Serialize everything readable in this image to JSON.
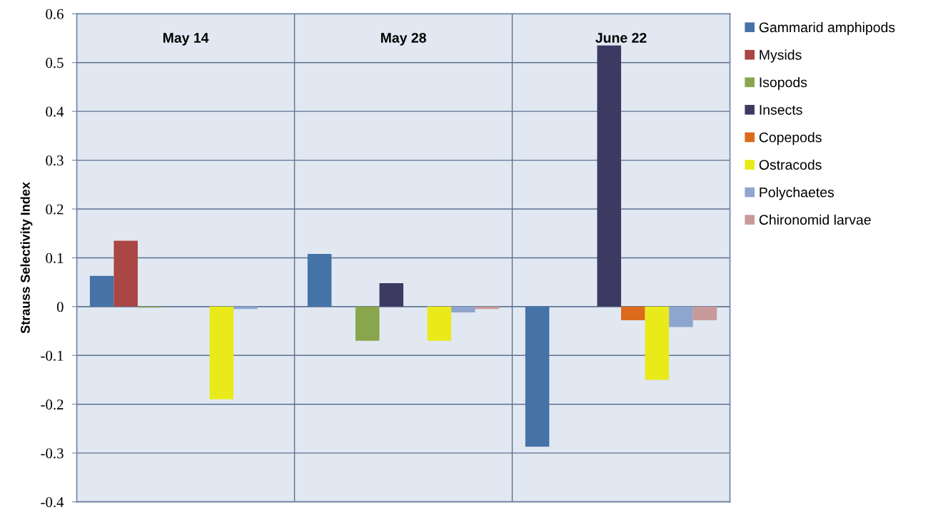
{
  "chart_data": {
    "type": "bar",
    "ylabel": "Strauss Selectivity Index",
    "categories": [
      "May 14",
      "May 28",
      "June 22"
    ],
    "series": [
      {
        "name": "Gammarid amphipods",
        "color": "#4572a7",
        "values": [
          0.063,
          0.108,
          -0.287
        ]
      },
      {
        "name": "Mysids",
        "color": "#aa4643",
        "values": [
          0.135,
          null,
          null
        ]
      },
      {
        "name": "Isopods",
        "color": "#89a54e",
        "values": [
          -0.002,
          -0.07,
          null
        ]
      },
      {
        "name": "Insects",
        "color": "#3d3a62",
        "values": [
          null,
          0.048,
          0.535
        ]
      },
      {
        "name": "Copepods",
        "color": "#db6a1b",
        "values": [
          null,
          null,
          -0.028
        ]
      },
      {
        "name": "Ostracods",
        "color": "#eaea1a",
        "values": [
          -0.19,
          -0.07,
          -0.15
        ]
      },
      {
        "name": "Polychaetes",
        "color": "#8ea5cf",
        "values": [
          -0.005,
          -0.012,
          -0.042
        ]
      },
      {
        "name": "Chironomid larvae",
        "color": "#c99a9a",
        "values": [
          null,
          -0.005,
          -0.028
        ]
      }
    ],
    "ylim": [
      -0.4,
      0.6
    ],
    "yticks": [
      {
        "value": -0.4,
        "label": "-0.4"
      },
      {
        "value": -0.3,
        "label": "-0.3"
      },
      {
        "value": -0.2,
        "label": "-0.2"
      },
      {
        "value": -0.1,
        "label": "-0.1"
      },
      0,
      0.1,
      0.2,
      0.3,
      0.4,
      0.5,
      0.6
    ],
    "grid": true,
    "legend": "right"
  }
}
